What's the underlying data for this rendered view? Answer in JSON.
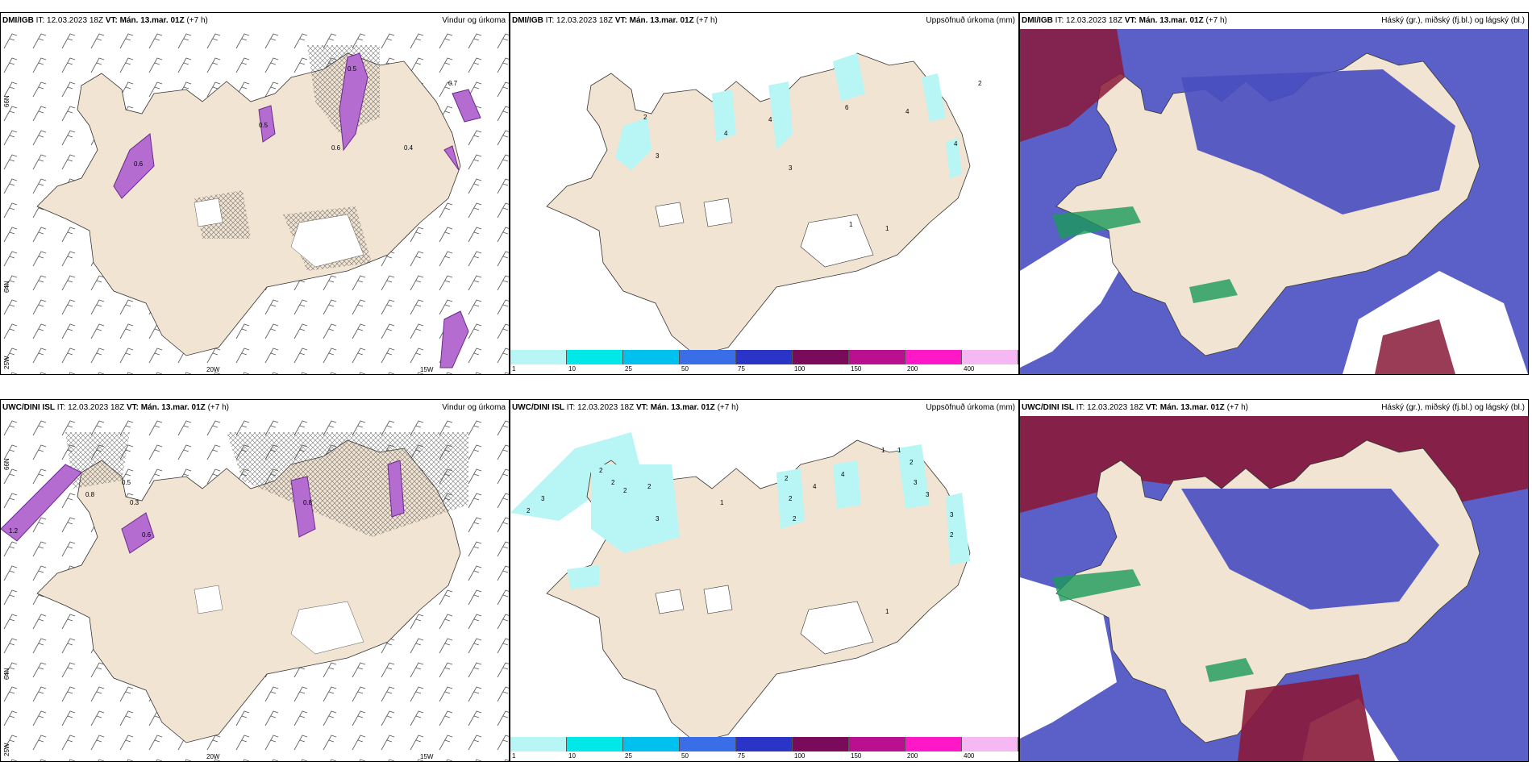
{
  "panels": [
    {
      "model": "DMI/IGB",
      "it": "IT: 12.03.2023 18Z",
      "vt_label": "VT:",
      "vt": "Mán. 13.mar. 01Z",
      "lead": "(+7 h)",
      "title": "Vindur og úrkoma"
    },
    {
      "model": "DMI/IGB",
      "it": "IT: 12.03.2023 18Z",
      "vt_label": "VT:",
      "vt": "Mán. 13.mar. 01Z",
      "lead": "(+7 h)",
      "title": "Uppsöfnuð úrkoma (mm)"
    },
    {
      "model": "DMI/IGB",
      "it": "IT: 12.03.2023 18Z",
      "vt_label": "VT:",
      "vt": "Mán. 13.mar. 01Z",
      "lead": "(+7 h)",
      "title": "Háský (gr.), miðský (fj.bl.) og lágský (bl.)"
    },
    {
      "model": "UWC/DINI ISL",
      "it": "IT: 12.03.2023 18Z",
      "vt_label": "VT:",
      "vt": "Mán. 13.mar. 01Z",
      "lead": "(+7 h)",
      "title": "Vindur og úrkoma"
    },
    {
      "model": "UWC/DINI ISL",
      "it": "IT: 12.03.2023 18Z",
      "vt_label": "VT:",
      "vt": "Mán. 13.mar. 01Z",
      "lead": "(+7 h)",
      "title": "Uppsöfnuð úrkoma (mm)"
    },
    {
      "model": "UWC/DINI ISL",
      "it": "IT: 12.03.2023 18Z",
      "vt_label": "VT:",
      "vt": "Mán. 13.mar. 01Z",
      "lead": "(+7 h)",
      "title": "Háský (gr.), miðský (fj.bl.) og lágský (bl.)"
    }
  ],
  "grid_labels": {
    "lat66": "66N",
    "lat64": "64N",
    "lon25": "25W",
    "lon20": "20W",
    "lon15": "15W"
  },
  "legend": {
    "ticks": [
      "1",
      "10",
      "25",
      "50",
      "75",
      "100",
      "150",
      "200",
      "400"
    ],
    "colors": [
      "#b8f6f6",
      "#00e8e8",
      "#00c0ee",
      "#3a6ee8",
      "#2a35c8",
      "#7a0a5a",
      "#b8108e",
      "#ff18c8",
      "#f6b8f2"
    ]
  },
  "precip_labels_top": [
    "2",
    "3",
    "4",
    "4",
    "6",
    "4",
    "3",
    "4",
    "2",
    "1",
    "1"
  ],
  "precip_labels_bottom": [
    "2",
    "3",
    "2",
    "2",
    "2",
    "2",
    "3",
    "1",
    "2",
    "2",
    "2",
    "4",
    "4",
    "1",
    "1",
    "2",
    "3",
    "3",
    "3",
    "2",
    "1"
  ],
  "wind_values_top": [
    "0.5",
    "0.6",
    "0.4",
    "0.6",
    "0.5",
    "0.7"
  ],
  "wind_values_bottom": [
    "0.5",
    "0.3",
    "0.8",
    "1.2",
    "0.6",
    "0.8"
  ],
  "colors": {
    "land": "#f2e4d2",
    "sea": "#ffffff",
    "precip": "#b46cd0",
    "cloud_high": "#8a1a3a",
    "cloud_mid": "#1a7a4a",
    "cloud_low": "#3b44c8"
  }
}
